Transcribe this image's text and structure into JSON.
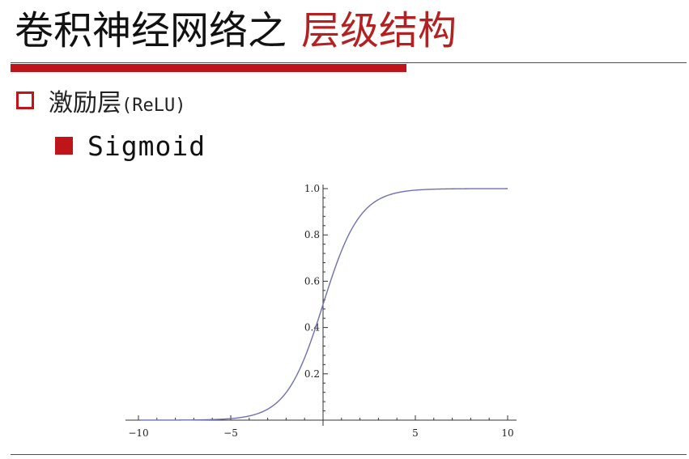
{
  "slide": {
    "title_black": "卷积神经网络之",
    "title_red": "层级结构",
    "bullet1_text": "激励层",
    "bullet1_sub": "(ReLU)",
    "bullet2_text": "Sigmoid"
  },
  "colors": {
    "accent_red": "#c0141b",
    "title_red": "#b22222",
    "curve": "#6f6fb0"
  },
  "chart_data": {
    "type": "line",
    "function": "sigmoid",
    "xlim": [
      -10,
      10
    ],
    "ylim": [
      0,
      1
    ],
    "x_ticks": [
      "-10",
      "-5",
      "5",
      "10"
    ],
    "y_ticks": [
      "0.2",
      "0.4",
      "0.6",
      "0.8",
      "1.0"
    ],
    "series": [
      {
        "x": [
          -10,
          -8,
          -6,
          -5,
          -4,
          -3,
          -2,
          -1,
          0,
          1,
          2,
          3,
          4,
          5,
          6,
          8,
          10
        ],
        "values": [
          4.54e-05,
          0.000335,
          0.00247,
          0.00669,
          0.018,
          0.0474,
          0.119,
          0.269,
          0.5,
          0.731,
          0.881,
          0.953,
          0.982,
          0.993,
          0.998,
          0.9997,
          0.99995
        ]
      }
    ],
    "grid": false
  }
}
